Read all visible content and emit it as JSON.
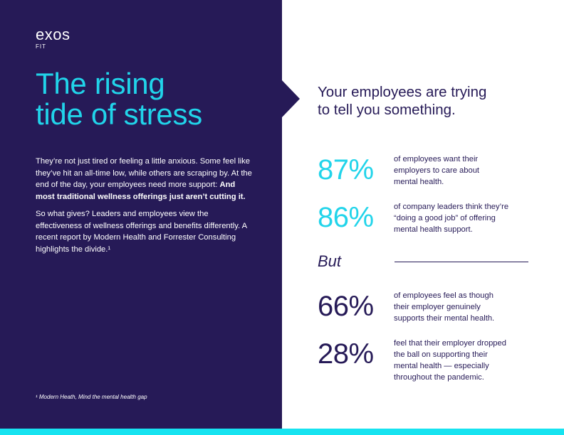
{
  "brand": {
    "name": "exos",
    "sub": "FIT"
  },
  "title": {
    "line1": "The rising",
    "line2": "tide of stress"
  },
  "intro": {
    "p1_text": "They’re not just tired or feeling a little anxious. Some feel like they’ve hit an all-time low, while others are scraping by. At the end of the day, your employees need more support: ",
    "p1_bold": "And most traditional wellness offerings just aren’t cutting it.",
    "p2": "So what gives? Leaders and employees view the effectiveness of wellness offerings and benefits differently. A recent report by Modern Health and Forrester Consulting highlights the divide.¹"
  },
  "footnote": "¹ Modern Heath, Mind the mental health gap",
  "headline": {
    "line1": "Your employees are trying",
    "line2": "to tell you something."
  },
  "stats": [
    {
      "value": "87%",
      "lines": [
        "of employees want their",
        "employers to care about",
        "mental health."
      ]
    },
    {
      "value": "86%",
      "lines": [
        "of company leaders think they’re",
        "“doing a good job” of offering",
        "mental health support."
      ]
    },
    {
      "value": "66%",
      "lines": [
        "of employees feel as though",
        "their employer genuinely",
        "supports their mental health."
      ]
    },
    {
      "value": "28%",
      "lines": [
        "feel that their employer dropped",
        "the ball on supporting their",
        "mental health — especially",
        "throughout the pandemic."
      ]
    }
  ],
  "divider_word": "But",
  "colors": {
    "navy": "#261a57",
    "cyan": "#21d4ea",
    "bar": "#17e3f0"
  }
}
